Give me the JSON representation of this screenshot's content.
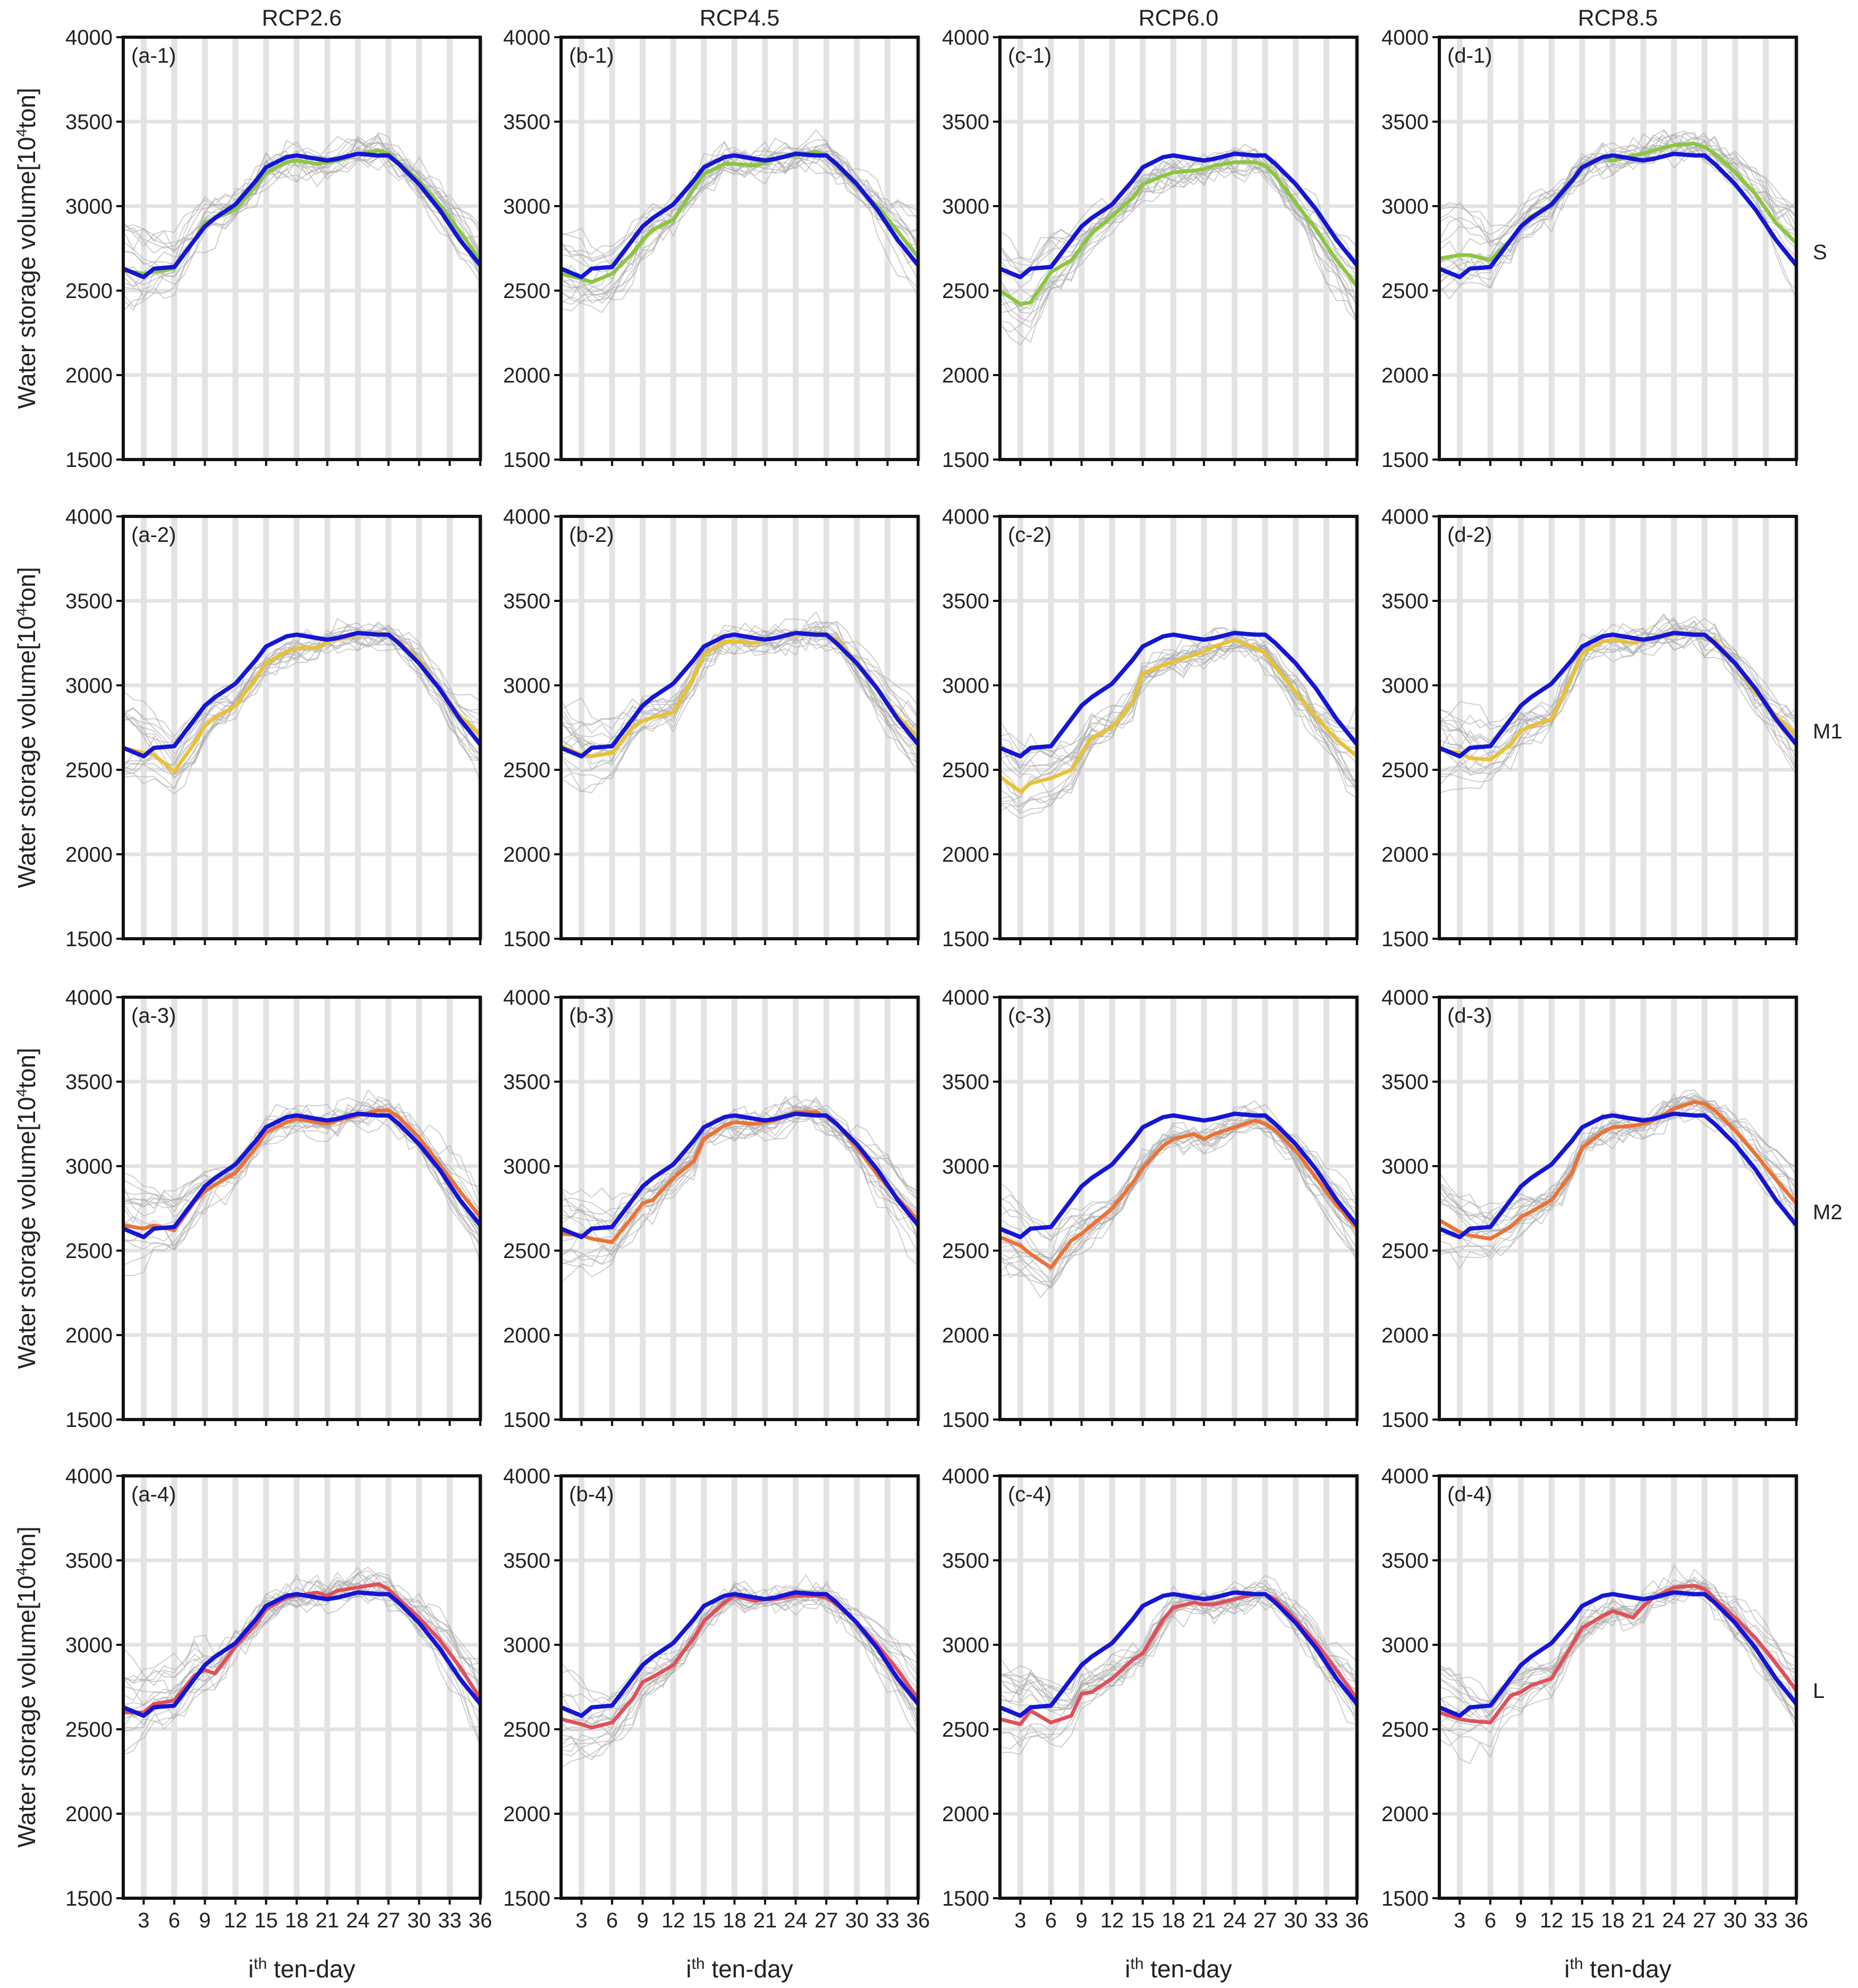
{
  "chart_data": {
    "type": "line",
    "layout": "4 rows x 4 columns small multiples",
    "column_titles": [
      "RCP2.6",
      "RCP4.5",
      "RCP6.0",
      "RCP8.5"
    ],
    "row_labels": [
      "S",
      "M1",
      "M2",
      "L"
    ],
    "ylabel": "Water storage volume[10",
    "ylabel_sup": "4",
    "ylabel_tail": "ton]",
    "xlabel": "i",
    "xlabel_sup": "th",
    "xlabel_tail": " ten-day",
    "xlim": [
      1,
      36
    ],
    "ylim": [
      1500,
      4000
    ],
    "y_ticks": [
      1500,
      2000,
      2500,
      3000,
      3500,
      4000
    ],
    "x_ticks": [
      3,
      6,
      9,
      12,
      15,
      18,
      21,
      24,
      27,
      30,
      33,
      36
    ],
    "grid": true,
    "colors": {
      "baseline": "#1515d6",
      "S": "#8cc63f",
      "M1": "#e8c236",
      "M2": "#ea7335",
      "L": "#e0505a",
      "ensemble": "#a9a9a9",
      "grid": "#e3e3e3"
    },
    "baseline_series": {
      "name": "baseline (blue)",
      "x": [
        1,
        3,
        4,
        6,
        8,
        9,
        10,
        12,
        14,
        15,
        17,
        18,
        20,
        21,
        22,
        24,
        26,
        27,
        28,
        30,
        32,
        34,
        36
      ],
      "values": [
        2630,
        2580,
        2630,
        2640,
        2800,
        2880,
        2930,
        3010,
        3150,
        3230,
        3290,
        3300,
        3280,
        3270,
        3280,
        3310,
        3300,
        3300,
        3250,
        3130,
        2980,
        2800,
        2650
      ]
    },
    "panels": [
      {
        "label": "(a-1)",
        "scenario": "RCP2.6",
        "row": "S",
        "x": [
          1,
          3,
          4,
          6,
          8,
          9,
          10,
          12,
          14,
          15,
          17,
          18,
          20,
          21,
          22,
          24,
          26,
          27,
          28,
          30,
          32,
          34,
          36
        ],
        "values": [
          2620,
          2600,
          2610,
          2630,
          2800,
          2900,
          2930,
          2980,
          3120,
          3200,
          3260,
          3270,
          3250,
          3260,
          3270,
          3310,
          3330,
          3310,
          3260,
          3150,
          3010,
          2850,
          2680
        ]
      },
      {
        "label": "(b-1)",
        "scenario": "RCP4.5",
        "row": "S",
        "x": [
          1,
          3,
          4,
          6,
          8,
          9,
          10,
          12,
          14,
          15,
          17,
          18,
          20,
          21,
          22,
          24,
          26,
          27,
          28,
          30,
          32,
          34,
          36
        ],
        "values": [
          2600,
          2570,
          2550,
          2600,
          2720,
          2800,
          2860,
          2920,
          3100,
          3190,
          3250,
          3250,
          3240,
          3260,
          3280,
          3300,
          3320,
          3300,
          3240,
          3120,
          3000,
          2850,
          2700
        ]
      },
      {
        "label": "(c-1)",
        "scenario": "RCP6.0",
        "row": "S",
        "x": [
          1,
          3,
          4,
          6,
          8,
          9,
          10,
          12,
          14,
          15,
          17,
          18,
          20,
          21,
          22,
          24,
          26,
          27,
          28,
          30,
          32,
          34,
          36
        ],
        "values": [
          2500,
          2420,
          2430,
          2610,
          2680,
          2760,
          2840,
          2940,
          3050,
          3130,
          3180,
          3200,
          3210,
          3220,
          3240,
          3260,
          3260,
          3240,
          3180,
          3020,
          2860,
          2680,
          2530
        ]
      },
      {
        "label": "(d-1)",
        "scenario": "RCP8.5",
        "row": "S",
        "x": [
          1,
          3,
          4,
          6,
          8,
          9,
          10,
          12,
          14,
          15,
          17,
          18,
          20,
          21,
          22,
          24,
          26,
          27,
          28,
          30,
          32,
          34,
          36
        ],
        "values": [
          2690,
          2710,
          2710,
          2680,
          2800,
          2880,
          2940,
          3000,
          3140,
          3220,
          3290,
          3270,
          3300,
          3310,
          3330,
          3360,
          3370,
          3350,
          3310,
          3200,
          3070,
          2900,
          2780
        ]
      },
      {
        "label": "(a-2)",
        "scenario": "RCP2.6",
        "row": "M1",
        "x": [
          1,
          3,
          4,
          6,
          8,
          9,
          10,
          12,
          14,
          15,
          17,
          18,
          20,
          21,
          22,
          24,
          26,
          27,
          28,
          30,
          32,
          34,
          36
        ],
        "values": [
          2630,
          2600,
          2590,
          2490,
          2660,
          2760,
          2810,
          2880,
          3040,
          3130,
          3200,
          3220,
          3220,
          3260,
          3270,
          3300,
          3310,
          3300,
          3260,
          3150,
          2980,
          2820,
          2700
        ]
      },
      {
        "label": "(b-2)",
        "scenario": "RCP4.5",
        "row": "M1",
        "x": [
          1,
          3,
          4,
          6,
          8,
          9,
          10,
          12,
          14,
          15,
          17,
          18,
          20,
          21,
          22,
          24,
          26,
          27,
          28,
          30,
          32,
          34,
          36
        ],
        "values": [
          2640,
          2590,
          2580,
          2600,
          2750,
          2790,
          2810,
          2840,
          3050,
          3180,
          3260,
          3260,
          3250,
          3270,
          3280,
          3300,
          3310,
          3300,
          3270,
          3140,
          2980,
          2820,
          2690
        ]
      },
      {
        "label": "(c-2)",
        "scenario": "RCP6.0",
        "row": "M1",
        "x": [
          1,
          3,
          4,
          6,
          8,
          9,
          10,
          12,
          14,
          15,
          17,
          18,
          20,
          21,
          22,
          24,
          26,
          27,
          28,
          30,
          32,
          34,
          36
        ],
        "values": [
          2460,
          2370,
          2420,
          2450,
          2500,
          2600,
          2690,
          2750,
          2900,
          3070,
          3120,
          3140,
          3180,
          3200,
          3230,
          3270,
          3220,
          3190,
          3110,
          2960,
          2810,
          2680,
          2580
        ]
      },
      {
        "label": "(d-2)",
        "scenario": "RCP8.5",
        "row": "M1",
        "x": [
          1,
          3,
          4,
          6,
          8,
          9,
          10,
          12,
          14,
          15,
          17,
          18,
          20,
          21,
          22,
          24,
          26,
          27,
          28,
          30,
          32,
          34,
          36
        ],
        "values": [
          2620,
          2600,
          2570,
          2560,
          2650,
          2730,
          2760,
          2800,
          3050,
          3190,
          3260,
          3270,
          3250,
          3270,
          3280,
          3300,
          3310,
          3290,
          3270,
          3130,
          2960,
          2820,
          2700
        ]
      },
      {
        "label": "(a-3)",
        "scenario": "RCP2.6",
        "row": "M2",
        "x": [
          1,
          3,
          4,
          6,
          8,
          9,
          10,
          12,
          14,
          15,
          17,
          18,
          20,
          21,
          22,
          24,
          26,
          27,
          28,
          30,
          32,
          34,
          36
        ],
        "values": [
          2650,
          2630,
          2650,
          2620,
          2790,
          2850,
          2890,
          2960,
          3110,
          3200,
          3260,
          3280,
          3260,
          3250,
          3270,
          3300,
          3330,
          3330,
          3290,
          3170,
          3010,
          2850,
          2700
        ]
      },
      {
        "label": "(b-3)",
        "scenario": "RCP4.5",
        "row": "M2",
        "x": [
          1,
          3,
          4,
          6,
          8,
          9,
          10,
          12,
          14,
          15,
          17,
          18,
          20,
          21,
          22,
          24,
          26,
          27,
          28,
          30,
          32,
          34,
          36
        ],
        "values": [
          2600,
          2590,
          2570,
          2550,
          2700,
          2780,
          2800,
          2930,
          3030,
          3160,
          3240,
          3260,
          3250,
          3260,
          3270,
          3320,
          3320,
          3290,
          3250,
          3110,
          2950,
          2810,
          2680
        ]
      },
      {
        "label": "(c-3)",
        "scenario": "RCP6.0",
        "row": "M2",
        "x": [
          1,
          3,
          4,
          6,
          8,
          9,
          10,
          12,
          14,
          15,
          17,
          18,
          20,
          21,
          22,
          24,
          26,
          27,
          28,
          30,
          32,
          34,
          36
        ],
        "values": [
          2580,
          2530,
          2480,
          2400,
          2560,
          2600,
          2650,
          2750,
          2900,
          2990,
          3120,
          3160,
          3190,
          3160,
          3190,
          3230,
          3270,
          3250,
          3210,
          3090,
          2930,
          2770,
          2630
        ]
      },
      {
        "label": "(d-3)",
        "scenario": "RCP8.5",
        "row": "M2",
        "x": [
          1,
          3,
          4,
          6,
          8,
          9,
          10,
          12,
          14,
          15,
          17,
          18,
          20,
          21,
          22,
          24,
          26,
          27,
          28,
          30,
          32,
          34,
          36
        ],
        "values": [
          2680,
          2610,
          2590,
          2570,
          2640,
          2700,
          2730,
          2800,
          2960,
          3110,
          3200,
          3230,
          3240,
          3250,
          3270,
          3340,
          3380,
          3370,
          3330,
          3210,
          3070,
          2920,
          2780
        ]
      },
      {
        "label": "(a-4)",
        "scenario": "RCP2.6",
        "row": "L",
        "x": [
          1,
          3,
          4,
          6,
          8,
          9,
          10,
          12,
          14,
          15,
          17,
          18,
          20,
          21,
          22,
          24,
          26,
          27,
          28,
          30,
          32,
          34,
          36
        ],
        "values": [
          2600,
          2600,
          2650,
          2670,
          2820,
          2850,
          2830,
          2990,
          3120,
          3210,
          3280,
          3290,
          3310,
          3290,
          3320,
          3340,
          3360,
          3330,
          3270,
          3160,
          3030,
          2870,
          2680
        ]
      },
      {
        "label": "(b-4)",
        "scenario": "RCP4.5",
        "row": "L",
        "x": [
          1,
          3,
          4,
          6,
          8,
          9,
          10,
          12,
          14,
          15,
          17,
          18,
          20,
          21,
          22,
          24,
          26,
          27,
          28,
          30,
          32,
          34,
          36
        ],
        "values": [
          2560,
          2530,
          2510,
          2540,
          2680,
          2780,
          2810,
          2880,
          3040,
          3140,
          3250,
          3290,
          3260,
          3270,
          3270,
          3290,
          3290,
          3280,
          3240,
          3130,
          3000,
          2850,
          2680
        ]
      },
      {
        "label": "(c-4)",
        "scenario": "RCP6.0",
        "row": "L",
        "x": [
          1,
          3,
          4,
          6,
          8,
          9,
          10,
          12,
          14,
          15,
          17,
          18,
          20,
          21,
          22,
          24,
          26,
          27,
          28,
          30,
          32,
          34,
          36
        ],
        "values": [
          2560,
          2530,
          2610,
          2540,
          2580,
          2710,
          2720,
          2800,
          2910,
          2950,
          3150,
          3220,
          3250,
          3240,
          3240,
          3270,
          3300,
          3300,
          3270,
          3150,
          3010,
          2850,
          2680
        ]
      },
      {
        "label": "(d-4)",
        "scenario": "RCP8.5",
        "row": "L",
        "x": [
          1,
          3,
          4,
          6,
          8,
          9,
          10,
          12,
          14,
          15,
          17,
          18,
          20,
          21,
          22,
          24,
          26,
          27,
          28,
          30,
          32,
          34,
          36
        ],
        "values": [
          2600,
          2560,
          2550,
          2540,
          2700,
          2720,
          2760,
          2800,
          3000,
          3100,
          3170,
          3200,
          3160,
          3230,
          3280,
          3340,
          3350,
          3330,
          3270,
          3160,
          3040,
          2890,
          2730
        ]
      }
    ]
  }
}
